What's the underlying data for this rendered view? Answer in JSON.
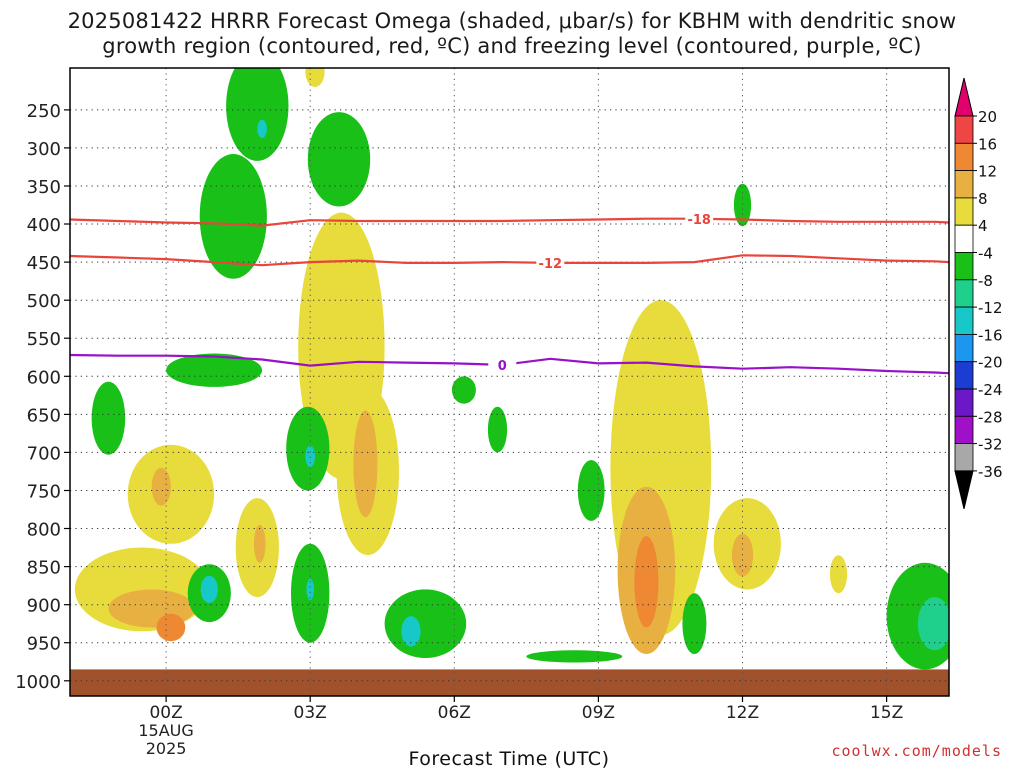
{
  "title_line1": "2025081422 HRRR Forecast Omega (shaded, μbar/s) for KBHM with dendritic snow",
  "title_line2": "growth region (contoured, red, ºC) and freezing level (contoured, purple, ºC)",
  "credit": "coolwx.com/models",
  "chart_data": {
    "type": "heatmap",
    "title": "2025081422 HRRR Forecast Omega (shaded, μbar/s) for KBHM with dendritic snow growth region (contoured, red, ºC) and freezing level (contoured, purple, ºC)",
    "xlabel": "Forecast Time (UTC)",
    "ylabel": "",
    "x_unit": "hours from 00Z 15AUG 2025",
    "xlim": [
      -2,
      16.3
    ],
    "ylim": [
      1020,
      195
    ],
    "y_ticks": [
      250,
      300,
      350,
      400,
      450,
      500,
      550,
      600,
      650,
      700,
      750,
      800,
      850,
      900,
      950,
      1000
    ],
    "x_ticks": [
      {
        "x": 0,
        "label": "00Z",
        "sub1": "15AUG",
        "sub2": "2025"
      },
      {
        "x": 3,
        "label": "03Z",
        "sub1": "",
        "sub2": ""
      },
      {
        "x": 6,
        "label": "06Z",
        "sub1": "",
        "sub2": ""
      },
      {
        "x": 9,
        "label": "09Z",
        "sub1": "",
        "sub2": ""
      },
      {
        "x": 12,
        "label": "12Z",
        "sub1": "",
        "sub2": ""
      },
      {
        "x": 15,
        "label": "15Z",
        "sub1": "",
        "sub2": ""
      }
    ],
    "grid": true,
    "ground_level_hpa": 985,
    "ground_color": "#a0522d",
    "colorbar": {
      "labels": [
        20,
        16,
        12,
        8,
        4,
        -4,
        -8,
        -12,
        -16,
        -20,
        -24,
        -28,
        -32,
        -36
      ],
      "colors": [
        "#e0006e",
        "#f04545",
        "#ee8832",
        "#e7b040",
        "#e7dc3c",
        "#ffffff",
        "#18c018",
        "#1ed08c",
        "#18c8c8",
        "#1c96ee",
        "#1c3cd2",
        "#6a18c8",
        "#a010c8",
        "#a8a8a8",
        "#000000"
      ]
    },
    "omega_features": [
      {
        "x": 1.9,
        "p": 245,
        "rx": 0.65,
        "rp": 72,
        "value": -6
      },
      {
        "x": 2.0,
        "p": 275,
        "rx": 0.1,
        "rp": 12,
        "value": -13
      },
      {
        "x": 3.6,
        "p": 315,
        "rx": 0.65,
        "rp": 62,
        "value": -6
      },
      {
        "x": 1.4,
        "p": 390,
        "rx": 0.7,
        "rp": 82,
        "value": -6
      },
      {
        "x": 3.1,
        "p": 200,
        "rx": 0.2,
        "rp": 20,
        "value": 6
      },
      {
        "x": 3.65,
        "p": 560,
        "rx": 0.9,
        "rp": 175,
        "value": 6
      },
      {
        "x": 4.2,
        "p": 725,
        "rx": 0.65,
        "rp": 110,
        "value": 6
      },
      {
        "x": 4.15,
        "p": 715,
        "rx": 0.25,
        "rp": 70,
        "value": 10
      },
      {
        "x": 1.0,
        "p": 592,
        "rx": 1.0,
        "rp": 22,
        "value": -6
      },
      {
        "x": -1.2,
        "p": 655,
        "rx": 0.35,
        "rp": 48,
        "value": -6
      },
      {
        "x": 2.95,
        "p": 695,
        "rx": 0.45,
        "rp": 55,
        "value": -6
      },
      {
        "x": 3.0,
        "p": 705,
        "rx": 0.1,
        "rp": 14,
        "value": -13
      },
      {
        "x": 0.1,
        "p": 755,
        "rx": 0.9,
        "rp": 65,
        "value": 6
      },
      {
        "x": -0.5,
        "p": 880,
        "rx": 1.4,
        "rp": 55,
        "value": 6
      },
      {
        "x": -0.3,
        "p": 905,
        "rx": 0.9,
        "rp": 25,
        "value": 10
      },
      {
        "x": -0.1,
        "p": 745,
        "rx": 0.2,
        "rp": 25,
        "value": 10
      },
      {
        "x": 0.1,
        "p": 930,
        "rx": 0.3,
        "rp": 18,
        "value": 14
      },
      {
        "x": 0.9,
        "p": 885,
        "rx": 0.45,
        "rp": 38,
        "value": -6
      },
      {
        "x": 0.9,
        "p": 880,
        "rx": 0.18,
        "rp": 18,
        "value": -13
      },
      {
        "x": 1.9,
        "p": 825,
        "rx": 0.45,
        "rp": 65,
        "value": 6
      },
      {
        "x": 1.95,
        "p": 820,
        "rx": 0.12,
        "rp": 25,
        "value": 10
      },
      {
        "x": 3.0,
        "p": 885,
        "rx": 0.4,
        "rp": 65,
        "value": -6
      },
      {
        "x": 3.0,
        "p": 880,
        "rx": 0.08,
        "rp": 14,
        "value": -13
      },
      {
        "x": 5.4,
        "p": 925,
        "rx": 0.85,
        "rp": 45,
        "value": -6
      },
      {
        "x": 5.1,
        "p": 935,
        "rx": 0.2,
        "rp": 20,
        "value": -13
      },
      {
        "x": 6.2,
        "p": 618,
        "rx": 0.25,
        "rp": 18,
        "value": -6
      },
      {
        "x": 6.9,
        "p": 670,
        "rx": 0.2,
        "rp": 30,
        "value": -6
      },
      {
        "x": 8.85,
        "p": 750,
        "rx": 0.28,
        "rp": 40,
        "value": -6
      },
      {
        "x": 8.5,
        "p": 968,
        "rx": 1.0,
        "rp": 8,
        "value": -6
      },
      {
        "x": 10.3,
        "p": 720,
        "rx": 1.05,
        "rp": 220,
        "value": 6
      },
      {
        "x": 10.0,
        "p": 855,
        "rx": 0.6,
        "rp": 110,
        "value": 10
      },
      {
        "x": 10.0,
        "p": 870,
        "rx": 0.25,
        "rp": 60,
        "value": 14
      },
      {
        "x": 11.0,
        "p": 925,
        "rx": 0.25,
        "rp": 40,
        "value": -6
      },
      {
        "x": 12.1,
        "p": 820,
        "rx": 0.7,
        "rp": 60,
        "value": 6
      },
      {
        "x": 12.0,
        "p": 835,
        "rx": 0.22,
        "rp": 28,
        "value": 10
      },
      {
        "x": 12.0,
        "p": 375,
        "rx": 0.18,
        "rp": 28,
        "value": -6
      },
      {
        "x": 14.0,
        "p": 860,
        "rx": 0.18,
        "rp": 25,
        "value": 6
      },
      {
        "x": 15.8,
        "p": 915,
        "rx": 0.8,
        "rp": 70,
        "value": -6
      },
      {
        "x": 16.0,
        "p": 925,
        "rx": 0.35,
        "rp": 35,
        "value": -10
      }
    ],
    "contours": [
      {
        "name": "",
        "label": "-18",
        "label_x": 11.1,
        "color": "#e8453c",
        "points": [
          [
            -2,
            394
          ],
          [
            -1,
            396
          ],
          [
            0,
            398
          ],
          [
            1,
            399
          ],
          [
            2,
            402
          ],
          [
            3,
            395
          ],
          [
            4,
            396
          ],
          [
            5,
            396
          ],
          [
            6,
            396
          ],
          [
            7,
            396
          ],
          [
            8,
            395
          ],
          [
            9,
            394
          ],
          [
            10,
            393
          ],
          [
            11,
            393
          ],
          [
            12,
            394
          ],
          [
            13,
            396
          ],
          [
            14,
            397
          ],
          [
            15,
            397
          ],
          [
            16,
            397
          ],
          [
            16.3,
            398
          ]
        ]
      },
      {
        "name": "",
        "label": "-12",
        "label_x": 8.0,
        "color": "#e8453c",
        "points": [
          [
            -2,
            442
          ],
          [
            -1,
            444
          ],
          [
            0,
            446
          ],
          [
            1,
            450
          ],
          [
            2,
            454
          ],
          [
            3,
            450
          ],
          [
            4,
            448
          ],
          [
            5,
            451
          ],
          [
            6,
            451
          ],
          [
            7,
            450
          ],
          [
            8,
            451
          ],
          [
            9,
            451
          ],
          [
            10,
            451
          ],
          [
            11,
            450
          ],
          [
            12,
            441
          ],
          [
            13,
            442
          ],
          [
            14,
            445
          ],
          [
            15,
            448
          ],
          [
            16,
            449
          ],
          [
            16.3,
            450
          ]
        ]
      },
      {
        "name": "",
        "label": "0",
        "label_x": 7.0,
        "color": "#9810c8",
        "points": [
          [
            -2,
            572
          ],
          [
            -1,
            573
          ],
          [
            0,
            573
          ],
          [
            1,
            574
          ],
          [
            2,
            578
          ],
          [
            3,
            586
          ],
          [
            4,
            581
          ],
          [
            5,
            582
          ],
          [
            6,
            583
          ],
          [
            7,
            585
          ],
          [
            8,
            577
          ],
          [
            9,
            583
          ],
          [
            10,
            582
          ],
          [
            11,
            587
          ],
          [
            12,
            590
          ],
          [
            13,
            588
          ],
          [
            14,
            590
          ],
          [
            15,
            593
          ],
          [
            16,
            595
          ],
          [
            16.3,
            596
          ]
        ]
      }
    ]
  }
}
